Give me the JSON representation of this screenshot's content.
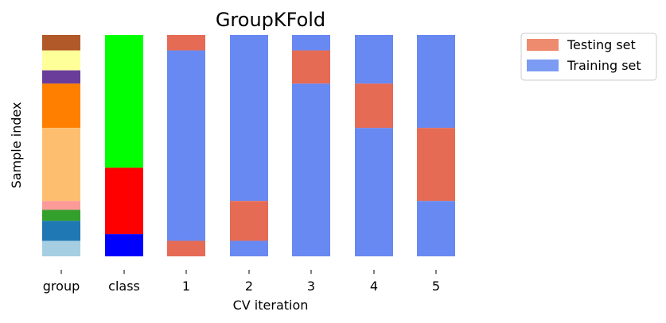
{
  "chart_data": {
    "type": "bar",
    "title": "GroupKFold",
    "xlabel": "CV iteration",
    "ylabel": "Sample index",
    "categories": [
      "group",
      "class",
      "1",
      "2",
      "3",
      "4",
      "5"
    ],
    "ylim": [
      0,
      100
    ],
    "grid": false,
    "legend_position": "top-right",
    "legend": [
      {
        "name": "Testing set",
        "color": "#ee8a6e"
      },
      {
        "name": "Training set",
        "color": "#7b9cf2"
      }
    ],
    "group_segments": [
      {
        "start": 0,
        "end": 7,
        "color": "#b15928"
      },
      {
        "start": 7,
        "end": 16,
        "color": "#ffff99"
      },
      {
        "start": 16,
        "end": 22,
        "color": "#6a3d9a"
      },
      {
        "start": 22,
        "end": 42,
        "color": "#ff7f00"
      },
      {
        "start": 42,
        "end": 75,
        "color": "#fdbf6f"
      },
      {
        "start": 75,
        "end": 79,
        "color": "#fb9a99"
      },
      {
        "start": 79,
        "end": 84,
        "color": "#33a02c"
      },
      {
        "start": 84,
        "end": 93,
        "color": "#1f78b4"
      },
      {
        "start": 93,
        "end": 100,
        "color": "#a6cee3"
      }
    ],
    "class_segments": [
      {
        "start": 0,
        "end": 60,
        "color": "#00ff00"
      },
      {
        "start": 60,
        "end": 90,
        "color": "#ff0000"
      },
      {
        "start": 90,
        "end": 100,
        "color": "#0000ff"
      }
    ],
    "splits": [
      {
        "iteration": "1",
        "segments": [
          {
            "start": 0,
            "end": 7,
            "set": "Testing set"
          },
          {
            "start": 7,
            "end": 93,
            "set": "Training set"
          },
          {
            "start": 93,
            "end": 100,
            "set": "Testing set"
          }
        ]
      },
      {
        "iteration": "2",
        "segments": [
          {
            "start": 0,
            "end": 75,
            "set": "Training set"
          },
          {
            "start": 75,
            "end": 93,
            "set": "Testing set"
          },
          {
            "start": 93,
            "end": 100,
            "set": "Training set"
          }
        ]
      },
      {
        "iteration": "3",
        "segments": [
          {
            "start": 0,
            "end": 7,
            "set": "Training set"
          },
          {
            "start": 7,
            "end": 22,
            "set": "Testing set"
          },
          {
            "start": 22,
            "end": 100,
            "set": "Training set"
          }
        ]
      },
      {
        "iteration": "4",
        "segments": [
          {
            "start": 0,
            "end": 22,
            "set": "Training set"
          },
          {
            "start": 22,
            "end": 42,
            "set": "Testing set"
          },
          {
            "start": 42,
            "end": 100,
            "set": "Training set"
          }
        ]
      },
      {
        "iteration": "5",
        "segments": [
          {
            "start": 0,
            "end": 42,
            "set": "Training set"
          },
          {
            "start": 42,
            "end": 75,
            "set": "Testing set"
          },
          {
            "start": 75,
            "end": 100,
            "set": "Training set"
          }
        ]
      }
    ],
    "split_colors": {
      "Testing set": "#e56b55",
      "Training set": "#6889f1"
    }
  }
}
